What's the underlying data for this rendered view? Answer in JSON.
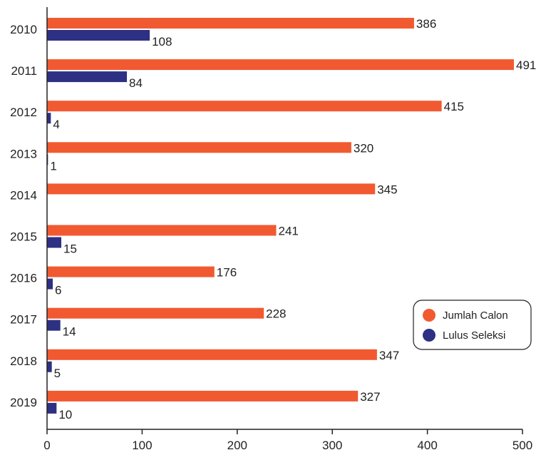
{
  "chart_data": {
    "type": "bar",
    "orientation": "horizontal",
    "categories": [
      "2010",
      "2011",
      "2012",
      "2013",
      "2014",
      "2015",
      "2016",
      "2017",
      "2018",
      "2019"
    ],
    "series": [
      {
        "name": "Jumlah Calon",
        "color": "#f15a31",
        "values": [
          386,
          491,
          415,
          320,
          345,
          241,
          176,
          228,
          347,
          327
        ]
      },
      {
        "name": "Lulus Seleksi",
        "color": "#2e3083",
        "values": [
          108,
          84,
          4,
          1,
          0,
          15,
          6,
          14,
          5,
          10
        ]
      }
    ],
    "data_labels": [
      [
        "386",
        "491",
        "415",
        "320",
        "345",
        "241",
        "176",
        "228",
        "347",
        "327"
      ],
      [
        "108",
        "84",
        "4",
        "1",
        "",
        "15",
        "6",
        "14",
        "5",
        "10"
      ]
    ],
    "x_ticks": [
      "0",
      "100",
      "200",
      "300",
      "400",
      "500"
    ],
    "xlim": [
      0,
      500
    ],
    "grid": false,
    "legend_position": "right"
  }
}
